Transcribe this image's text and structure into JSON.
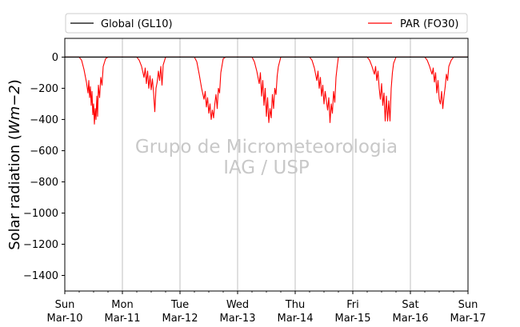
{
  "chart_data": {
    "type": "line",
    "title": "",
    "xlabel": "",
    "ylabel": "Solar radiation (Wm−2)",
    "ylabel_parts": {
      "prefix": "Solar radiation (",
      "units": "Wm−2",
      "suffix": ")"
    },
    "xlim": [
      "2019-03-10",
      "2019-03-17"
    ],
    "ylim": [
      -1500,
      120
    ],
    "y_ticks": [
      0,
      -200,
      -400,
      -600,
      -800,
      -1000,
      -1200,
      -1400
    ],
    "y_tick_labels": [
      "0",
      "−200",
      "−400",
      "−600",
      "−800",
      "−1000",
      "−1200",
      "−1400"
    ],
    "x_ticks": [
      {
        "day": "Sun",
        "date": "Mar-10",
        "x": "2019-03-10"
      },
      {
        "day": "Mon",
        "date": "Mar-11",
        "x": "2019-03-11"
      },
      {
        "day": "Tue",
        "date": "Mar-12",
        "x": "2019-03-12"
      },
      {
        "day": "Wed",
        "date": "Mar-13",
        "x": "2019-03-13"
      },
      {
        "day": "Thu",
        "date": "Mar-14",
        "x": "2019-03-14"
      },
      {
        "day": "Fri",
        "date": "Mar-15",
        "x": "2019-03-15"
      },
      {
        "day": "Sat",
        "date": "Mar-16",
        "x": "2019-03-16"
      },
      {
        "day": "Sun",
        "date": "Mar-17",
        "x": "2019-03-17"
      }
    ],
    "grid": "vertical at day boundaries",
    "legend": {
      "placement": "top, outside plot",
      "entries": [
        {
          "label": "Global (GL10)",
          "color": "#000000"
        },
        {
          "label": "PAR (FO30)",
          "color": "#ff0000"
        }
      ]
    },
    "watermark": [
      "Grupo de Micrometeorologia",
      "IAG / USP"
    ],
    "series": [
      {
        "name": "Global (GL10)",
        "color": "#000000",
        "points": [
          [
            "2019-03-10 00:00",
            0
          ],
          [
            "2019-03-17 00:00",
            0
          ]
        ]
      },
      {
        "name": "PAR (FO30)",
        "color": "#ff0000",
        "points": [
          [
            "2019-03-10 00:00",
            0
          ],
          [
            "2019-03-10 06:00",
            0
          ],
          [
            "2019-03-10 07:00",
            -20
          ],
          [
            "2019-03-10 08:00",
            -80
          ],
          [
            "2019-03-10 09:00",
            -160
          ],
          [
            "2019-03-10 09:40",
            -230
          ],
          [
            "2019-03-10 10:00",
            -150
          ],
          [
            "2019-03-10 10:20",
            -260
          ],
          [
            "2019-03-10 10:40",
            -190
          ],
          [
            "2019-03-10 11:00",
            -310
          ],
          [
            "2019-03-10 11:20",
            -220
          ],
          [
            "2019-03-10 11:40",
            -370
          ],
          [
            "2019-03-10 12:00",
            -300
          ],
          [
            "2019-03-10 12:20",
            -430
          ],
          [
            "2019-03-10 12:40",
            -330
          ],
          [
            "2019-03-10 13:00",
            -400
          ],
          [
            "2019-03-10 13:20",
            -250
          ],
          [
            "2019-03-10 13:40",
            -380
          ],
          [
            "2019-03-10 14:00",
            -180
          ],
          [
            "2019-03-10 14:30",
            -260
          ],
          [
            "2019-03-10 15:00",
            -130
          ],
          [
            "2019-03-10 15:30",
            -180
          ],
          [
            "2019-03-10 16:00",
            -60
          ],
          [
            "2019-03-10 17:00",
            -10
          ],
          [
            "2019-03-10 18:00",
            0
          ],
          [
            "2019-03-11 06:00",
            0
          ],
          [
            "2019-03-11 07:00",
            -20
          ],
          [
            "2019-03-11 08:00",
            -60
          ],
          [
            "2019-03-11 09:00",
            -130
          ],
          [
            "2019-03-11 09:30",
            -70
          ],
          [
            "2019-03-11 10:00",
            -170
          ],
          [
            "2019-03-11 10:30",
            -90
          ],
          [
            "2019-03-11 11:00",
            -200
          ],
          [
            "2019-03-11 11:30",
            -120
          ],
          [
            "2019-03-11 12:00",
            -210
          ],
          [
            "2019-03-11 12:30",
            -140
          ],
          [
            "2019-03-11 13:00",
            -230
          ],
          [
            "2019-03-11 13:30",
            -350
          ],
          [
            "2019-03-11 14:00",
            -200
          ],
          [
            "2019-03-11 14:30",
            -160
          ],
          [
            "2019-03-11 15:00",
            -90
          ],
          [
            "2019-03-11 15:30",
            -150
          ],
          [
            "2019-03-11 16:00",
            -60
          ],
          [
            "2019-03-11 16:30",
            -180
          ],
          [
            "2019-03-11 17:00",
            -50
          ],
          [
            "2019-03-11 18:00",
            0
          ],
          [
            "2019-03-12 06:00",
            0
          ],
          [
            "2019-03-12 07:00",
            -30
          ],
          [
            "2019-03-12 08:00",
            -110
          ],
          [
            "2019-03-12 09:00",
            -200
          ],
          [
            "2019-03-12 10:00",
            -270
          ],
          [
            "2019-03-12 10:30",
            -220
          ],
          [
            "2019-03-12 11:00",
            -320
          ],
          [
            "2019-03-12 11:30",
            -260
          ],
          [
            "2019-03-12 12:00",
            -360
          ],
          [
            "2019-03-12 12:30",
            -300
          ],
          [
            "2019-03-12 13:00",
            -400
          ],
          [
            "2019-03-12 13:30",
            -340
          ],
          [
            "2019-03-12 14:00",
            -390
          ],
          [
            "2019-03-12 14:30",
            -300
          ],
          [
            "2019-03-12 15:00",
            -240
          ],
          [
            "2019-03-12 15:30",
            -330
          ],
          [
            "2019-03-12 16:00",
            -200
          ],
          [
            "2019-03-12 16:30",
            -230
          ],
          [
            "2019-03-12 17:00",
            -100
          ],
          [
            "2019-03-12 18:00",
            -10
          ],
          [
            "2019-03-12 19:00",
            0
          ],
          [
            "2019-03-13 06:00",
            0
          ],
          [
            "2019-03-13 07:00",
            -30
          ],
          [
            "2019-03-13 08:00",
            -90
          ],
          [
            "2019-03-13 09:00",
            -170
          ],
          [
            "2019-03-13 09:30",
            -100
          ],
          [
            "2019-03-13 10:00",
            -250
          ],
          [
            "2019-03-13 10:30",
            -150
          ],
          [
            "2019-03-13 11:00",
            -310
          ],
          [
            "2019-03-13 11:30",
            -200
          ],
          [
            "2019-03-13 12:00",
            -380
          ],
          [
            "2019-03-13 12:30",
            -260
          ],
          [
            "2019-03-13 13:00",
            -420
          ],
          [
            "2019-03-13 13:30",
            -330
          ],
          [
            "2019-03-13 14:00",
            -390
          ],
          [
            "2019-03-13 14:30",
            -240
          ],
          [
            "2019-03-13 15:00",
            -330
          ],
          [
            "2019-03-13 15:30",
            -200
          ],
          [
            "2019-03-13 16:00",
            -240
          ],
          [
            "2019-03-13 16:30",
            -120
          ],
          [
            "2019-03-13 17:00",
            -60
          ],
          [
            "2019-03-13 18:00",
            0
          ],
          [
            "2019-03-14 06:00",
            0
          ],
          [
            "2019-03-14 07:00",
            -20
          ],
          [
            "2019-03-14 08:00",
            -70
          ],
          [
            "2019-03-14 09:00",
            -150
          ],
          [
            "2019-03-14 09:30",
            -90
          ],
          [
            "2019-03-14 10:00",
            -200
          ],
          [
            "2019-03-14 10:30",
            -130
          ],
          [
            "2019-03-14 11:00",
            -250
          ],
          [
            "2019-03-14 11:30",
            -180
          ],
          [
            "2019-03-14 12:00",
            -300
          ],
          [
            "2019-03-14 12:30",
            -220
          ],
          [
            "2019-03-14 13:00",
            -280
          ],
          [
            "2019-03-14 13:30",
            -340
          ],
          [
            "2019-03-14 14:00",
            -260
          ],
          [
            "2019-03-14 14:30",
            -420
          ],
          [
            "2019-03-14 15:00",
            -300
          ],
          [
            "2019-03-14 15:30",
            -360
          ],
          [
            "2019-03-14 16:00",
            -220
          ],
          [
            "2019-03-14 16:30",
            -290
          ],
          [
            "2019-03-14 17:00",
            -130
          ],
          [
            "2019-03-14 17:30",
            -60
          ],
          [
            "2019-03-14 18:00",
            0
          ],
          [
            "2019-03-15 06:00",
            0
          ],
          [
            "2019-03-15 07:00",
            -20
          ],
          [
            "2019-03-15 08:00",
            -60
          ],
          [
            "2019-03-15 09:00",
            -110
          ],
          [
            "2019-03-15 09:30",
            -60
          ],
          [
            "2019-03-15 10:00",
            -150
          ],
          [
            "2019-03-15 10:30",
            -90
          ],
          [
            "2019-03-15 11:00",
            -200
          ],
          [
            "2019-03-15 11:30",
            -270
          ],
          [
            "2019-03-15 12:00",
            -170
          ],
          [
            "2019-03-15 12:30",
            -310
          ],
          [
            "2019-03-15 13:00",
            -230
          ],
          [
            "2019-03-15 13:30",
            -410
          ],
          [
            "2019-03-15 14:00",
            -250
          ],
          [
            "2019-03-15 14:30",
            -410
          ],
          [
            "2019-03-15 15:00",
            -280
          ],
          [
            "2019-03-15 15:30",
            -410
          ],
          [
            "2019-03-15 16:00",
            -200
          ],
          [
            "2019-03-15 16:30",
            -100
          ],
          [
            "2019-03-15 17:00",
            -40
          ],
          [
            "2019-03-15 18:00",
            0
          ],
          [
            "2019-03-16 06:00",
            0
          ],
          [
            "2019-03-16 07:00",
            -20
          ],
          [
            "2019-03-16 08:00",
            -60
          ],
          [
            "2019-03-16 09:00",
            -110
          ],
          [
            "2019-03-16 09:30",
            -70
          ],
          [
            "2019-03-16 10:00",
            -160
          ],
          [
            "2019-03-16 10:30",
            -100
          ],
          [
            "2019-03-16 11:00",
            -230
          ],
          [
            "2019-03-16 11:30",
            -150
          ],
          [
            "2019-03-16 12:00",
            -270
          ],
          [
            "2019-03-16 12:30",
            -300
          ],
          [
            "2019-03-16 13:00",
            -220
          ],
          [
            "2019-03-16 13:30",
            -330
          ],
          [
            "2019-03-16 14:00",
            -250
          ],
          [
            "2019-03-16 14:30",
            -190
          ],
          [
            "2019-03-16 15:00",
            -110
          ],
          [
            "2019-03-16 15:30",
            -150
          ],
          [
            "2019-03-16 16:00",
            -60
          ],
          [
            "2019-03-16 17:00",
            -20
          ],
          [
            "2019-03-16 18:00",
            0
          ],
          [
            "2019-03-17 00:00",
            0
          ]
        ]
      }
    ]
  }
}
